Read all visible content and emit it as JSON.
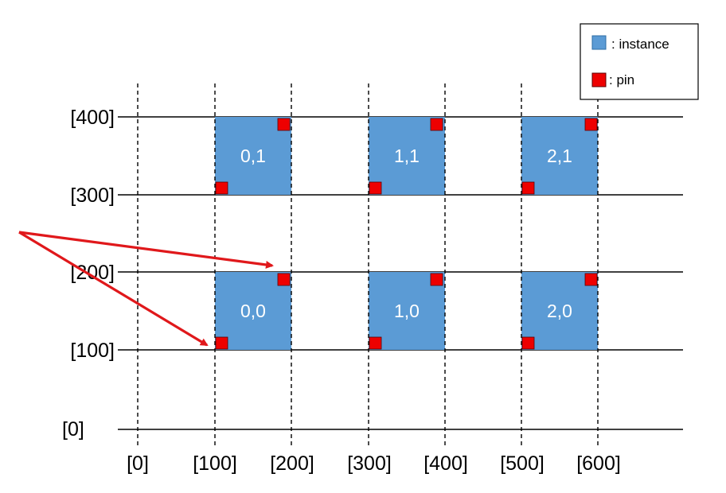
{
  "y_labels": [
    "[400]",
    "[300]",
    "[200]",
    "[100]",
    "[0]"
  ],
  "x_labels": [
    "[0]",
    "[100]",
    "[200]",
    "[300]",
    "[400]",
    "[500]",
    "[600]"
  ],
  "instances": [
    {
      "label": "0,1"
    },
    {
      "label": "1,1"
    },
    {
      "label": "2,1"
    },
    {
      "label": "0,0"
    },
    {
      "label": "1,0"
    },
    {
      "label": "2,0"
    }
  ],
  "legend": {
    "instance_label": ": instance",
    "pin_label": ": pin"
  },
  "colors": {
    "instance_fill": "#5b9bd5",
    "pin_fill": "#ee0000",
    "arrow": "#e0181b",
    "line": "#000000"
  }
}
